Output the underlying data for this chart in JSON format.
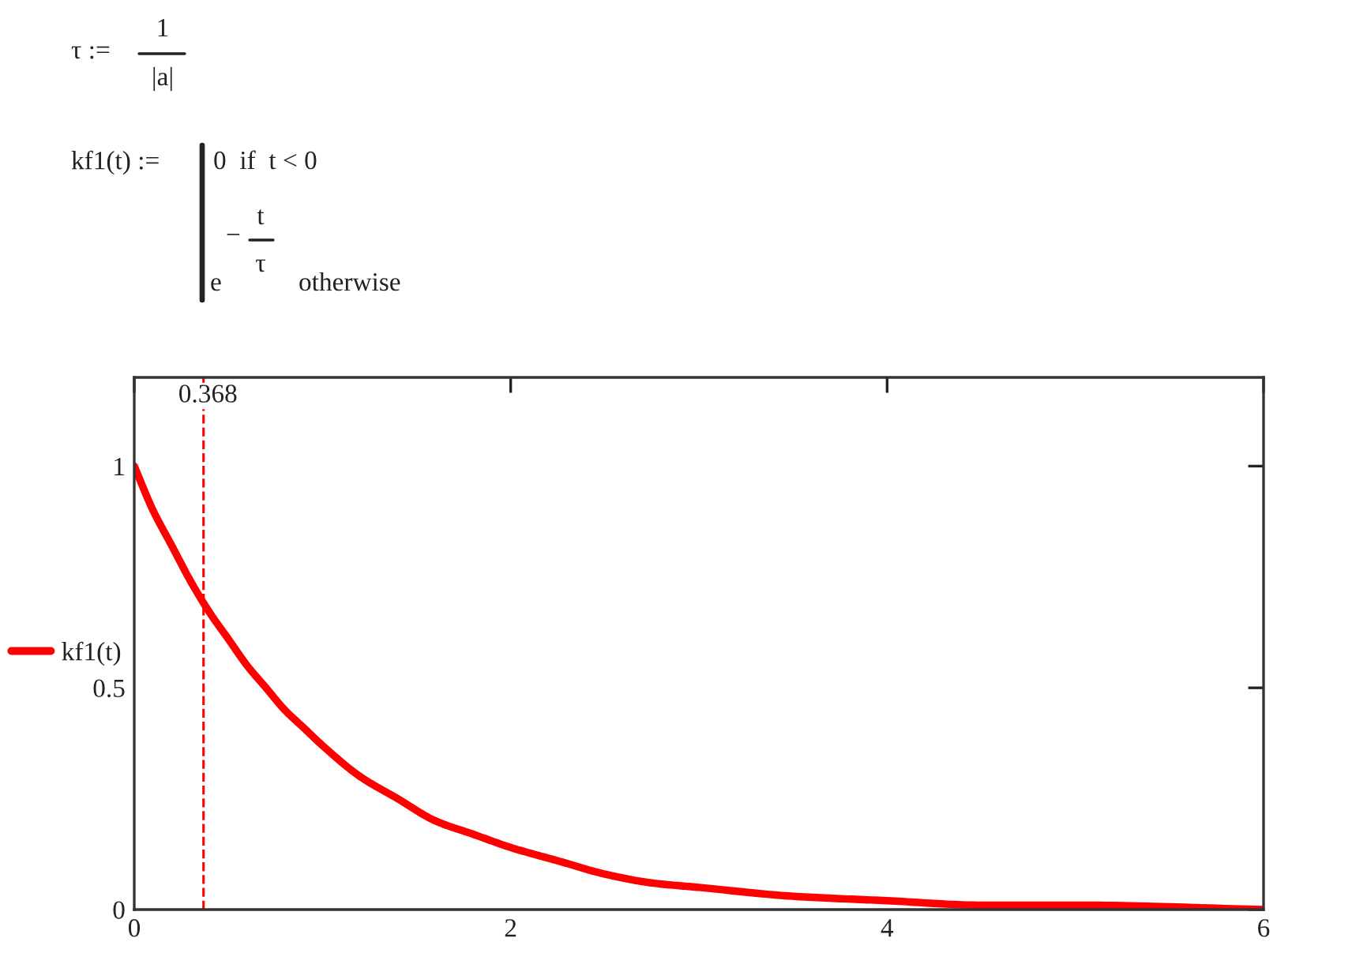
{
  "chart_data": {
    "type": "line",
    "annotations": [
      "τ :=",
      "1",
      "|a|",
      "kf1(t) :=",
      "0  if  t < 0",
      "e",
      "−",
      "t",
      "τ",
      "otherwise"
    ],
    "x": [
      0,
      0.1,
      0.2,
      0.3,
      0.4,
      0.5,
      0.6,
      0.7,
      0.8,
      0.9,
      1,
      1.2,
      1.4,
      1.6,
      1.8,
      2,
      2.25,
      2.5,
      2.75,
      3,
      3.5,
      4,
      4.5,
      5,
      6
    ],
    "series": [
      {
        "name": "kf1(t)",
        "color": "#ff0000",
        "values": [
          1,
          0.9,
          0.82,
          0.74,
          0.67,
          0.61,
          0.55,
          0.5,
          0.45,
          0.41,
          0.37,
          0.3,
          0.25,
          0.2,
          0.17,
          0.14,
          0.11,
          0.08,
          0.06,
          0.05,
          0.03,
          0.02,
          0.01,
          0.01,
          0
        ]
      }
    ],
    "xlim": [
      0,
      6
    ],
    "xticks": [
      0,
      2,
      4,
      6
    ],
    "ylim": [
      0,
      1.2
    ],
    "yticks": [
      0,
      0.5,
      1
    ],
    "ref_lines": [
      {
        "axis": "x",
        "value": 0.368,
        "label": "0.368",
        "color": "#ff0000",
        "line_style": "dashed"
      }
    ],
    "legend": "left",
    "marker": "none",
    "line_style": "solid"
  }
}
